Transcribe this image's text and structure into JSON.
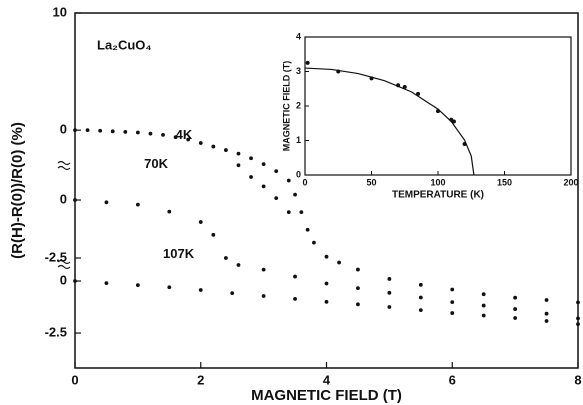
{
  "chart_data": [
    {
      "type": "scatter",
      "xlabel": "MAGNETIC FIELD (T)",
      "ylabel": "(R(H)-R(0))/R(0) (%)",
      "annotation": "La₂CuO₄",
      "xlim": [
        0,
        8
      ],
      "xticks": [
        0,
        2,
        4,
        6,
        8
      ],
      "color": "#111111",
      "panels": [
        {
          "name": "4K",
          "ylim": [
            -20.3,
            10
          ],
          "yticks": [
            10,
            0
          ],
          "x": [
            0,
            0.2,
            0.4,
            0.6,
            0.8,
            1.0,
            1.2,
            1.4,
            1.6,
            1.8,
            2.0,
            2.2,
            2.4,
            2.6,
            2.8,
            3.0,
            3.2,
            3.4,
            3.5,
            3.6,
            3.7,
            3.8,
            4.0,
            4.2,
            4.5,
            5.0,
            5.5,
            6.0,
            6.5,
            7.0,
            7.5,
            8.0,
            2.6,
            2.8,
            3.0,
            3.2,
            3.4
          ],
          "values": [
            0,
            0,
            -0.05,
            -0.1,
            -0.15,
            -0.2,
            -0.3,
            -0.4,
            -0.6,
            -0.8,
            -1.1,
            -1.4,
            -1.7,
            -2.0,
            -2.4,
            -2.9,
            -3.5,
            -4.3,
            -5.5,
            -7.0,
            -8.5,
            -9.6,
            -10.8,
            -11.3,
            -11.9,
            -12.7,
            -13.2,
            -13.6,
            -14.0,
            -14.3,
            -14.5,
            -14.7,
            -3.0,
            -4.0,
            -4.8,
            -5.8,
            -7.0
          ]
        },
        {
          "name": "70K",
          "ylim": [
            -7.24,
            8.06
          ],
          "yticks": [
            0,
            -2.5
          ],
          "x": [
            0,
            0.5,
            1.0,
            1.5,
            2.0,
            2.2,
            2.4,
            2.6,
            3.0,
            3.5,
            4.0,
            4.5,
            5.0,
            5.5,
            6.0,
            6.5,
            7.0,
            7.5,
            8.0
          ],
          "values": [
            0,
            -0.1,
            -0.2,
            -0.5,
            -0.95,
            -1.5,
            -2.5,
            -2.8,
            -3.0,
            -3.3,
            -3.6,
            -3.8,
            -4.0,
            -4.2,
            -4.4,
            -4.55,
            -4.7,
            -4.9,
            -5.1
          ]
        },
        {
          "name": "107K",
          "ylim": [
            -4.18,
            12.88
          ],
          "yticks": [
            0,
            -2.5
          ],
          "x": [
            0,
            0.5,
            1.0,
            1.5,
            2.0,
            2.5,
            3.0,
            3.5,
            4.0,
            4.5,
            5.0,
            5.5,
            6.0,
            6.5,
            7.0,
            7.5,
            8.0
          ],
          "values": [
            0,
            -0.1,
            -0.2,
            -0.3,
            -0.43,
            -0.58,
            -0.72,
            -0.86,
            -1.0,
            -1.12,
            -1.25,
            -1.4,
            -1.54,
            -1.66,
            -1.78,
            -1.92,
            -2.07
          ]
        }
      ]
    },
    {
      "type": "scatter",
      "xlabel": "TEMPERATURE (K)",
      "ylabel": "MAGNETIC FIELD (T)",
      "color": "#111111",
      "xlim": [
        0,
        200
      ],
      "xticks": [
        0,
        50,
        100,
        150,
        200
      ],
      "ylim": [
        0,
        4
      ],
      "yticks": [
        0,
        1,
        2,
        3,
        4
      ],
      "x": [
        2,
        25,
        50,
        70,
        75,
        85,
        100,
        110,
        112,
        120
      ],
      "values": [
        3.25,
        3.0,
        2.8,
        2.6,
        2.55,
        2.35,
        1.85,
        1.6,
        1.55,
        0.9
      ],
      "fit": {
        "x": [
          0,
          20,
          40,
          60,
          80,
          100,
          110,
          120,
          125,
          127
        ],
        "values": [
          3.1,
          3.06,
          2.94,
          2.73,
          2.41,
          1.91,
          1.55,
          1.01,
          0.55,
          0
        ]
      }
    }
  ]
}
